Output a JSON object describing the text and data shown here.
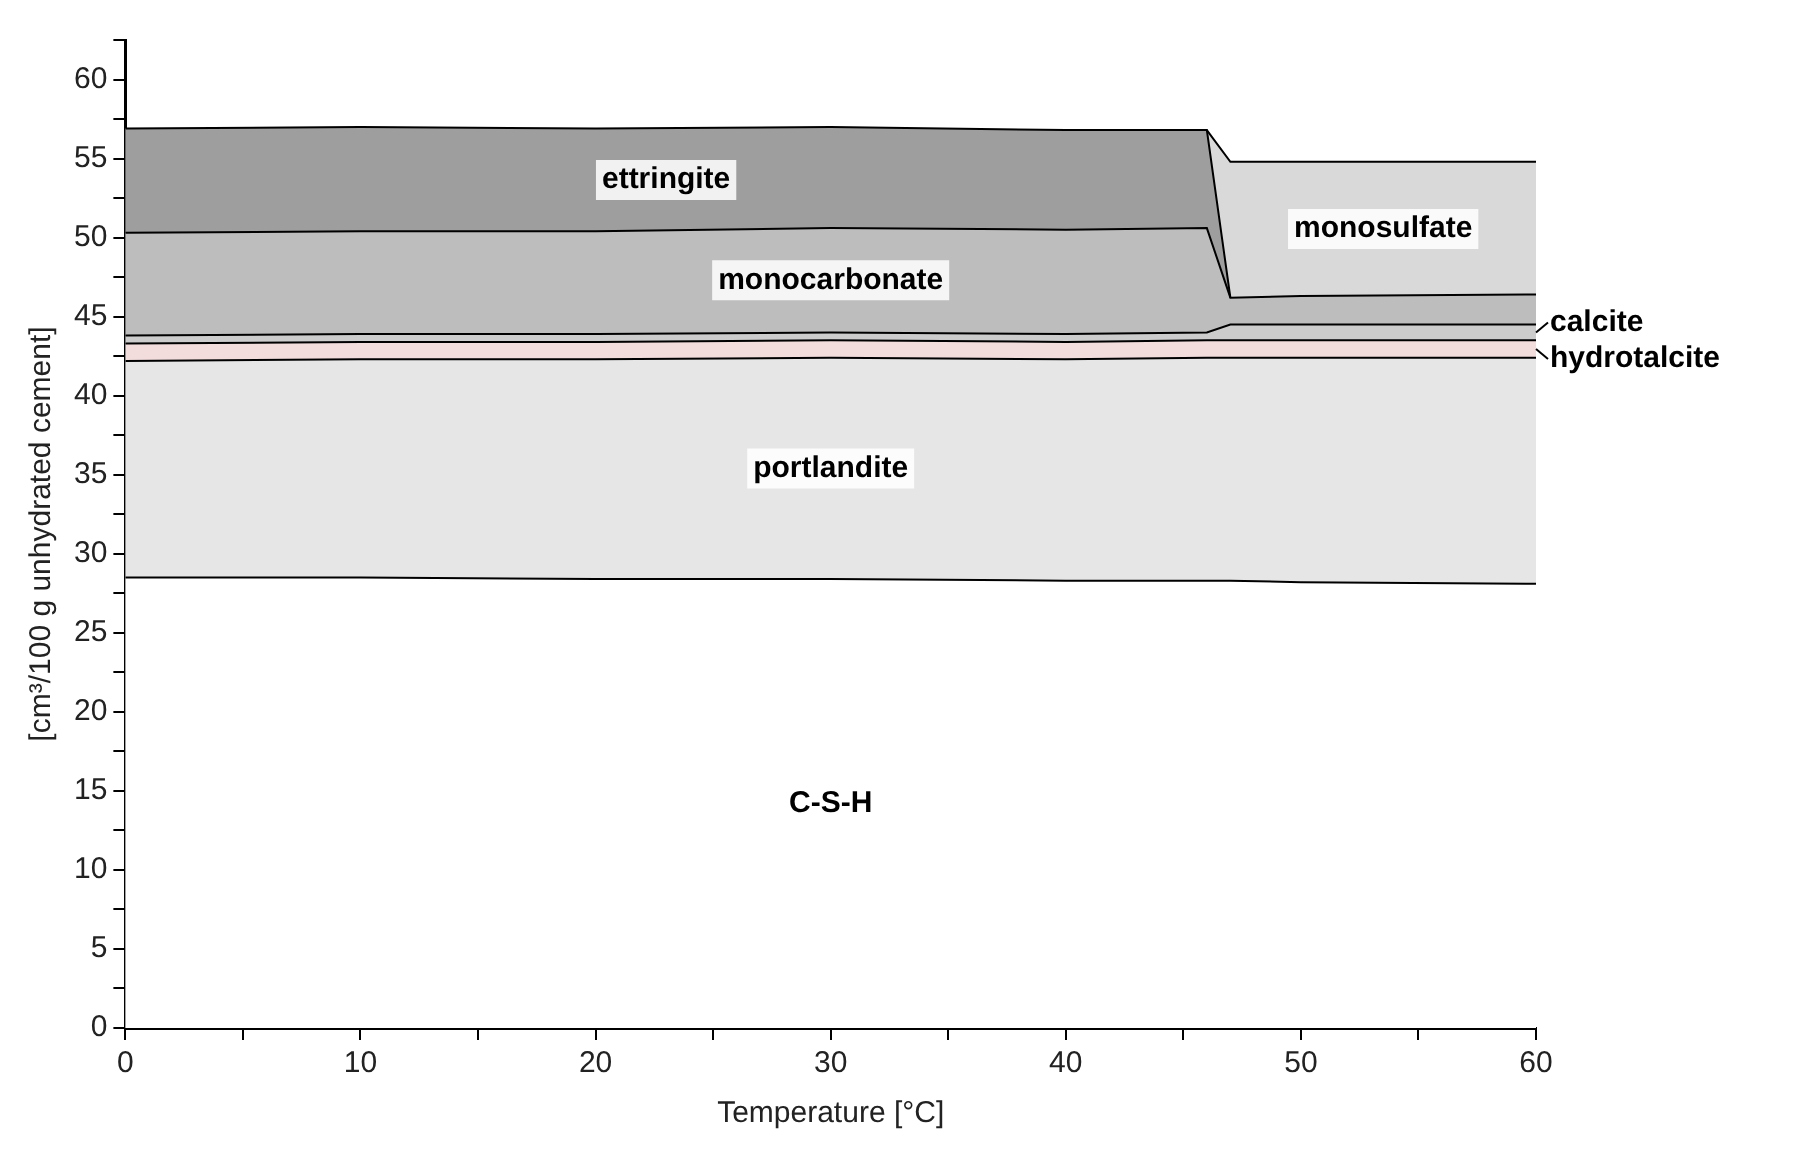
{
  "chart_data": {
    "type": "area",
    "stacked": true,
    "xlabel": "Temperature [°C]",
    "ylabel": "[cm³/100 g unhydrated cement]",
    "x": [
      0,
      10,
      20,
      30,
      40,
      46,
      47,
      50,
      60
    ],
    "series": [
      {
        "name": "C-S-H",
        "color": "#ffffff",
        "values": [
          28.5,
          28.5,
          28.4,
          28.4,
          28.3,
          28.3,
          28.3,
          28.2,
          28.1
        ]
      },
      {
        "name": "portlandite",
        "color": "#e6e6e6",
        "values": [
          13.7,
          13.8,
          13.9,
          14.0,
          14.0,
          14.1,
          14.1,
          14.2,
          14.3
        ]
      },
      {
        "name": "hydrotalcite",
        "color": "#f2dcdc",
        "values": [
          1.1,
          1.1,
          1.1,
          1.1,
          1.1,
          1.1,
          1.1,
          1.1,
          1.1
        ]
      },
      {
        "name": "calcite",
        "color": "#cccccc",
        "values": [
          0.5,
          0.5,
          0.5,
          0.5,
          0.5,
          0.5,
          1.0,
          1.0,
          1.0
        ]
      },
      {
        "name": "monocarbonate",
        "color": "#bdbdbd",
        "values": [
          6.5,
          6.5,
          6.5,
          6.6,
          6.6,
          6.6,
          1.7,
          1.8,
          1.9
        ]
      },
      {
        "name": "ettringite",
        "color": "#9e9e9e",
        "values": [
          6.6,
          6.6,
          6.5,
          6.4,
          6.3,
          6.2,
          0,
          null,
          null
        ]
      },
      {
        "name": "monosulfate",
        "color": "#d9d9d9",
        "values": [
          null,
          null,
          null,
          null,
          null,
          0,
          8.6,
          8.5,
          8.4
        ]
      }
    ],
    "xlim": [
      0,
      60
    ],
    "xticks": [
      0,
      {
        "value": 5,
        "label": null
      },
      10,
      {
        "value": 15,
        "label": null
      },
      20,
      {
        "value": 25,
        "label": null
      },
      30,
      {
        "value": 35,
        "label": null
      },
      40,
      {
        "value": 45,
        "label": null
      },
      50,
      {
        "value": 55,
        "label": null
      },
      60
    ],
    "ylim": [
      0,
      62.5
    ],
    "yticks": [
      0,
      {
        "value": 2.5,
        "label": null
      },
      5,
      {
        "value": 7.5,
        "label": null
      },
      10,
      {
        "value": 12.5,
        "label": null
      },
      15,
      {
        "value": 17.5,
        "label": null
      },
      20,
      {
        "value": 22.5,
        "label": null
      },
      25,
      {
        "value": 27.5,
        "label": null
      },
      30,
      {
        "value": 32.5,
        "label": null
      },
      35,
      {
        "value": 37.5,
        "label": null
      },
      40,
      {
        "value": 42.5,
        "label": null
      },
      45,
      {
        "value": 47.5,
        "label": null
      },
      50,
      {
        "value": 52.5,
        "label": null
      },
      55,
      {
        "value": 57.5,
        "label": null
      },
      60,
      {
        "value": 62.5,
        "label": null
      }
    ],
    "grid": false,
    "legend": "right"
  }
}
